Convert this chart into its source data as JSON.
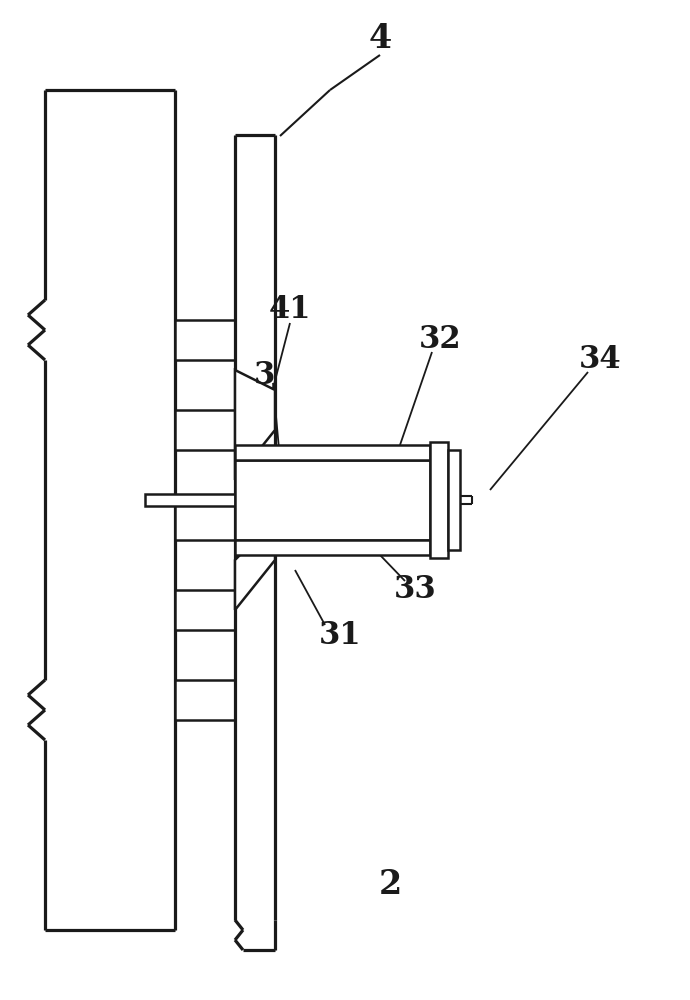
{
  "bg_color": "#ffffff",
  "lc": "#1a1a1a",
  "lw": 1.8,
  "figsize": [
    6.9,
    10.0
  ],
  "dpi": 100,
  "label_fontsize": 20
}
